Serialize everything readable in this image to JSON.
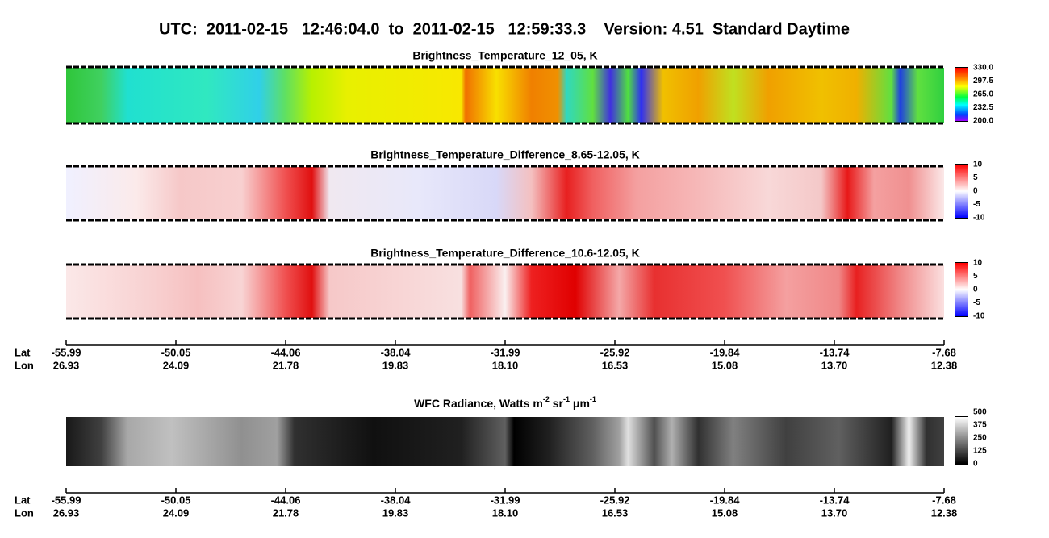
{
  "header": {
    "title": "UTC:  2011-02-15   12:46:04.0  to  2011-02-15   12:59:33.3    Version: 4.51  Standard Daytime"
  },
  "panels": [
    {
      "title": "Brightness_Temperature_12_05, K",
      "colorbar_labels": [
        "330.0",
        "297.5",
        "265.0",
        "232.5",
        "200.0"
      ]
    },
    {
      "title": "Brightness_Temperature_Difference_8.65-12.05, K",
      "colorbar_labels": [
        "10",
        "5",
        "0",
        "-5",
        "-10"
      ]
    },
    {
      "title": "Brightness_Temperature_Difference_10.6-12.05, K",
      "colorbar_labels": [
        "10",
        "5",
        "0",
        "-5",
        "-10"
      ]
    }
  ],
  "wfc": {
    "title_parts": [
      "WFC Radiance, Watts m",
      "-2",
      " sr",
      "-1",
      " μm",
      "-1"
    ],
    "colorbar_labels": [
      "500",
      "375",
      "250",
      "125",
      "0"
    ]
  },
  "axes": [
    {
      "row_labels": [
        "Lat",
        "Lon"
      ],
      "lat": [
        "-55.99",
        "-50.05",
        "-44.06",
        "-38.04",
        "-31.99",
        "-25.92",
        "-19.84",
        "-13.74",
        "-7.68"
      ],
      "lon": [
        "26.93",
        "24.09",
        "21.78",
        "19.83",
        "18.10",
        "16.53",
        "15.08",
        "13.70",
        "12.38"
      ]
    },
    {
      "row_labels": [
        "Lat",
        "Lon"
      ],
      "lat": [
        "-55.99",
        "-50.05",
        "-44.06",
        "-38.04",
        "-31.99",
        "-25.92",
        "-19.84",
        "-13.74",
        "-7.68"
      ],
      "lon": [
        "26.93",
        "24.09",
        "21.78",
        "19.83",
        "18.10",
        "16.53",
        "15.08",
        "13.70",
        "12.38"
      ]
    }
  ]
}
